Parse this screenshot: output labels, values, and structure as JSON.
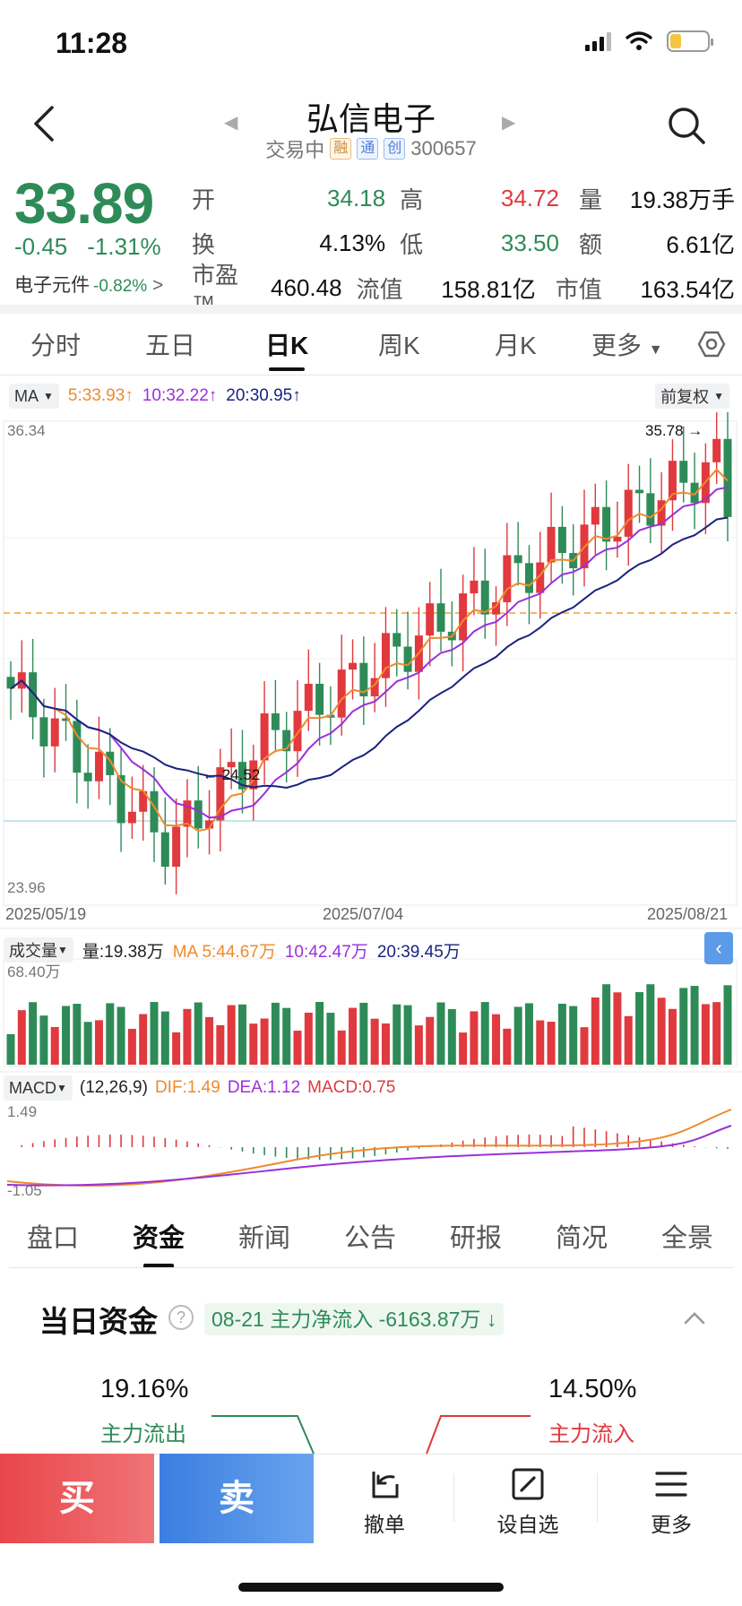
{
  "status": {
    "time": "11:28"
  },
  "header": {
    "name": "弘信电子",
    "state": "交易中",
    "tags": [
      "融",
      "通",
      "创"
    ],
    "code": "300657"
  },
  "quote": {
    "price": "33.89",
    "change": "-0.45",
    "change_pct": "-1.31%",
    "industry": "电子元件",
    "industry_pct": "-0.82%",
    "rows": [
      [
        {
          "label": "开",
          "value": "34.18",
          "color": "green"
        },
        {
          "label": "高",
          "value": "34.72",
          "color": "red"
        },
        {
          "label": "量",
          "value": "19.38万手",
          "color": "black"
        }
      ],
      [
        {
          "label": "换",
          "value": "4.13%",
          "color": "black"
        },
        {
          "label": "低",
          "value": "33.50",
          "color": "green"
        },
        {
          "label": "额",
          "value": "6.61亿",
          "color": "black"
        }
      ],
      [
        {
          "label": "市盈™",
          "value": "460.48",
          "color": "black"
        },
        {
          "label": "流值",
          "value": "158.81亿",
          "color": "black"
        },
        {
          "label": "市值",
          "value": "163.54亿",
          "color": "black"
        }
      ]
    ]
  },
  "period_tabs": [
    "分时",
    "五日",
    "日K",
    "周K",
    "月K",
    "更多"
  ],
  "active_period": "日K",
  "indicators": {
    "ma_select": "MA",
    "ma5": "5:33.93",
    "ma10": "10:32.22",
    "ma20": "20:30.95",
    "adjust": "前复权",
    "vol_select": "成交量",
    "vol_value": "量:19.38万",
    "vol_ma5": "MA 5:44.67万",
    "vol_ma10": "10:42.47万",
    "vol_ma20": "20:39.45万",
    "macd_select": "MACD",
    "macd_params": "(12,26,9)",
    "dif": "DIF:1.49",
    "dea": "DEA:1.12",
    "macd": "MACD:0.75"
  },
  "chart_data": {
    "type": "candlestick",
    "y_max_label": "36.34",
    "y_min_label": "23.96",
    "high_mark": "35.78",
    "low_mark": "24.52",
    "dates": [
      "2025/05/19",
      "2025/07/04",
      "2025/08/21"
    ],
    "vol_max_label": "68.40万",
    "macd_max_label": "1.49",
    "macd_min_label": "-1.05",
    "colors": {
      "up": "#e0393e",
      "down": "#2e8b57",
      "ma5": "#ee8a2e",
      "ma10": "#9b30d9",
      "ma20": "#1a237e"
    }
  },
  "bottom_tabs": [
    "盘口",
    "资金",
    "新闻",
    "公告",
    "研报",
    "简况",
    "全景"
  ],
  "active_bottom": "资金",
  "funds": {
    "title": "当日资金",
    "net_flow": "08-21 主力净流入 -6163.87万",
    "out_pct": "19.16%",
    "out_label": "主力流出",
    "in_pct": "14.50%",
    "in_label": "主力流入"
  },
  "actions": {
    "buy": "买",
    "sell": "卖",
    "cancel": "撤单",
    "watchlist": "设自选",
    "more": "更多"
  }
}
